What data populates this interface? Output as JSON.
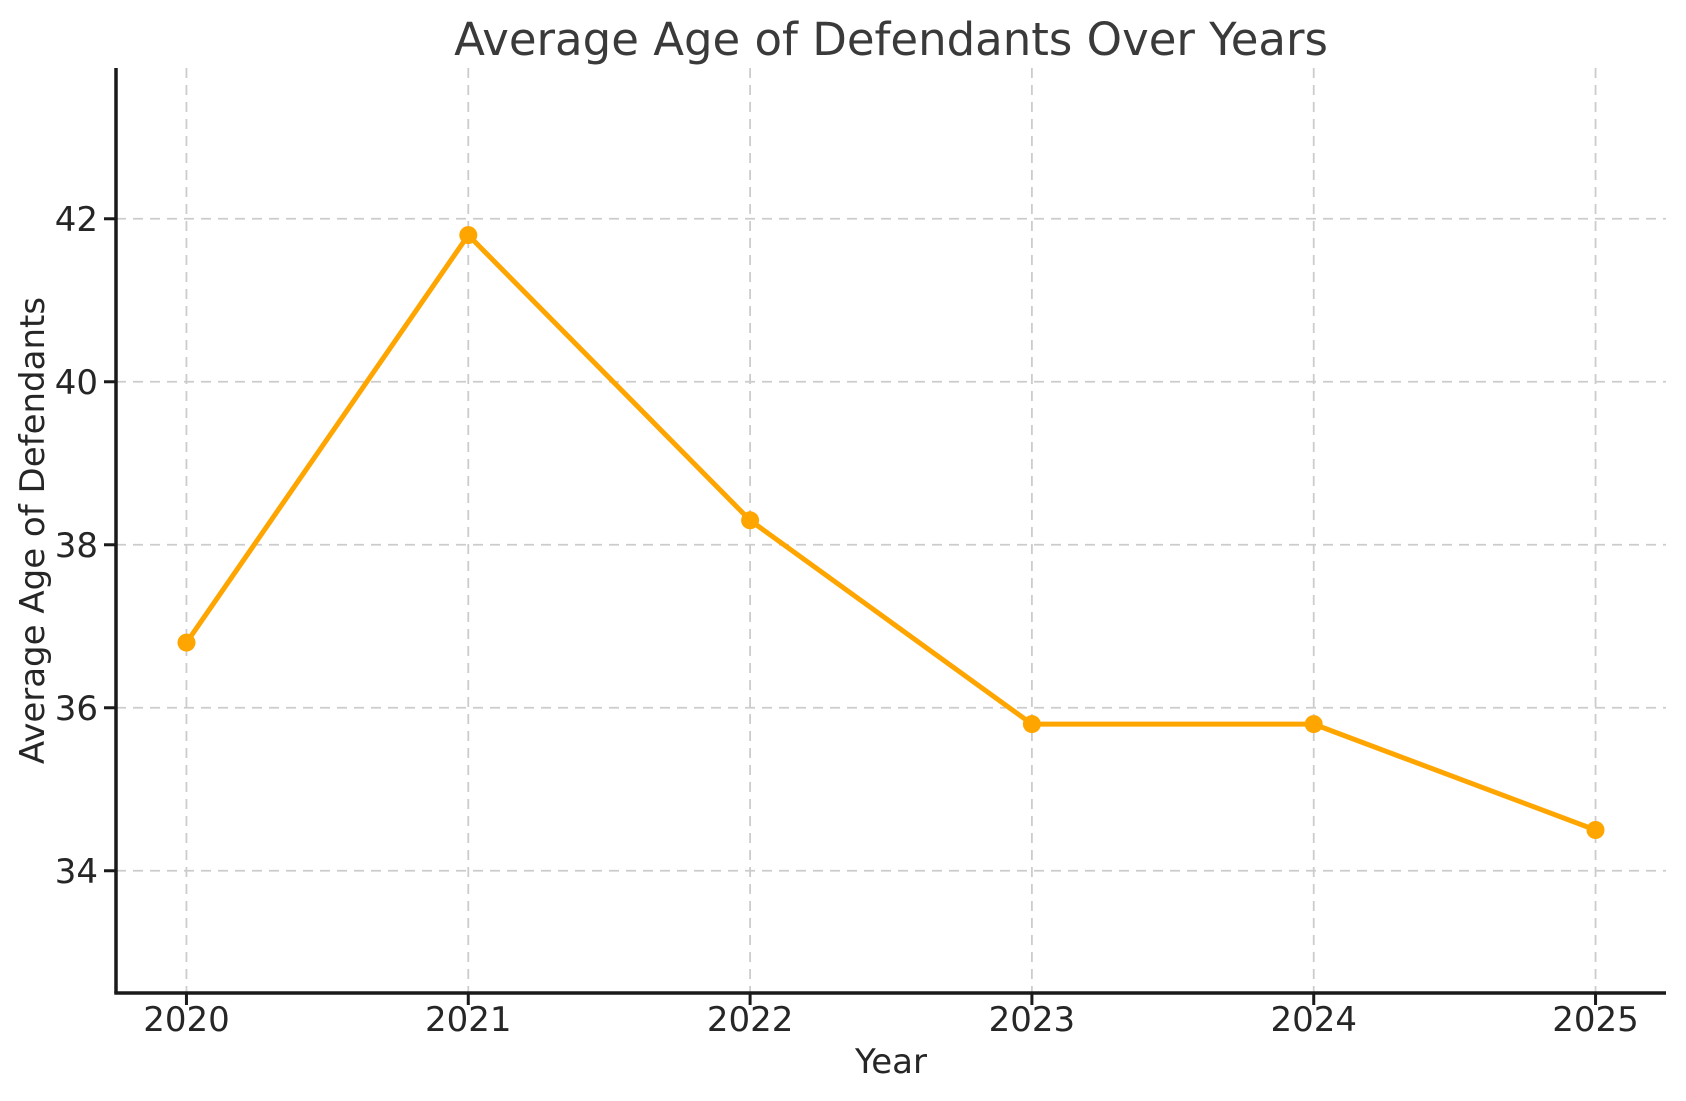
{
  "chart_data": {
    "type": "line",
    "title": "Average Age of Defendants Over Years",
    "xlabel": "Year",
    "ylabel": "Average Age of Defendants",
    "x": [
      2020,
      2021,
      2022,
      2023,
      2024,
      2025
    ],
    "values": [
      36.8,
      41.8,
      38.3,
      35.8,
      35.8,
      34.5
    ],
    "series_name": "Average Age of Defendants",
    "xticks": [
      2020,
      2021,
      2022,
      2023,
      2024,
      2025
    ],
    "yticks": [
      34,
      36,
      38,
      40,
      42
    ],
    "xlim": [
      2019.75,
      2025.25
    ],
    "ylim": [
      32.5,
      43.85
    ],
    "grid": true,
    "grid_style": "dashed",
    "legend": false,
    "marker": "circle",
    "colors": {
      "line": "#FFA500",
      "marker": "#FFA500",
      "grid": "#cccccc",
      "spine": "#1a1a1a",
      "tick": "#1a1a1a",
      "text": "#262626",
      "title_text": "#3a3a3a",
      "background": "#ffffff"
    }
  }
}
